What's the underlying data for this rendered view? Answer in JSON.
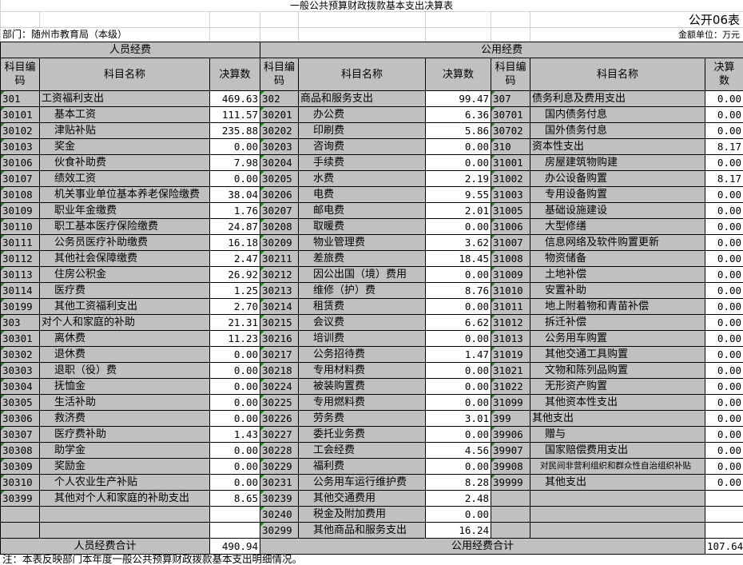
{
  "title": "一般公共预算财政拨款基本支出决算表",
  "form_no": "公开06表",
  "department": "部门：随州市教育局（本级）",
  "unit": "金额单位：万元",
  "sections": {
    "personnel": "人员经费",
    "public": "公用经费"
  },
  "headers": {
    "code": "科目编码",
    "name": "科目名称",
    "amount": "决算数"
  },
  "colors": {
    "cell_gray": "#c0c0c0",
    "value_white": "#ffffff",
    "marker_green": "#1a8a1a"
  },
  "personnel_rows": [
    {
      "code": "301",
      "name": "工资福利支出",
      "amount": "469.63"
    },
    {
      "code": "30101",
      "name": "基本工资",
      "amount": "111.57"
    },
    {
      "code": "30102",
      "name": "津贴补贴",
      "amount": "235.88"
    },
    {
      "code": "30103",
      "name": "奖金",
      "amount": "0.00"
    },
    {
      "code": "30106",
      "name": "伙食补助费",
      "amount": "7.98"
    },
    {
      "code": "30107",
      "name": "绩效工资",
      "amount": "0.00"
    },
    {
      "code": "30108",
      "name": "机关事业单位基本养老保险缴费",
      "amount": "38.04"
    },
    {
      "code": "30109",
      "name": "职业年金缴费",
      "amount": "1.76"
    },
    {
      "code": "30110",
      "name": "职工基本医疗保险缴费",
      "amount": "24.87"
    },
    {
      "code": "30111",
      "name": "公务员医疗补助缴费",
      "amount": "16.18"
    },
    {
      "code": "30112",
      "name": "其他社会保障缴费",
      "amount": "2.47"
    },
    {
      "code": "30113",
      "name": "住房公积金",
      "amount": "26.92"
    },
    {
      "code": "30114",
      "name": "医疗费",
      "amount": "1.25"
    },
    {
      "code": "30199",
      "name": "其他工资福利支出",
      "amount": "2.70"
    },
    {
      "code": "303",
      "name": "对个人和家庭的补助",
      "amount": "21.31"
    },
    {
      "code": "30301",
      "name": "离休费",
      "amount": "11.23"
    },
    {
      "code": "30302",
      "name": "退休费",
      "amount": "0.00"
    },
    {
      "code": "30303",
      "name": "退职（役）费",
      "amount": "0.00"
    },
    {
      "code": "30304",
      "name": "抚恤金",
      "amount": "0.00"
    },
    {
      "code": "30305",
      "name": "生活补助",
      "amount": "0.00"
    },
    {
      "code": "30306",
      "name": "救济费",
      "amount": "0.00"
    },
    {
      "code": "30307",
      "name": "医疗费补助",
      "amount": "1.43"
    },
    {
      "code": "30308",
      "name": "助学金",
      "amount": "0.00"
    },
    {
      "code": "30309",
      "name": "奖励金",
      "amount": "0.00"
    },
    {
      "code": "30310",
      "name": "个人农业生产补贴",
      "amount": "0.00"
    },
    {
      "code": "30399",
      "name": "其他对个人和家庭的补助支出",
      "amount": "8.65"
    }
  ],
  "public_rows_a": [
    {
      "code": "302",
      "name": "商品和服务支出",
      "amount": "99.47"
    },
    {
      "code": "30201",
      "name": "办公费",
      "amount": "6.36"
    },
    {
      "code": "30202",
      "name": "印刷费",
      "amount": "5.86"
    },
    {
      "code": "30203",
      "name": "咨询费",
      "amount": "0.00"
    },
    {
      "code": "30204",
      "name": "手续费",
      "amount": "0.00"
    },
    {
      "code": "30205",
      "name": "水费",
      "amount": "2.19"
    },
    {
      "code": "30206",
      "name": "电费",
      "amount": "9.55"
    },
    {
      "code": "30207",
      "name": "邮电费",
      "amount": "2.01"
    },
    {
      "code": "30208",
      "name": "取暖费",
      "amount": "0.00"
    },
    {
      "code": "30209",
      "name": "物业管理费",
      "amount": "3.62"
    },
    {
      "code": "30211",
      "name": "差旅费",
      "amount": "18.45"
    },
    {
      "code": "30212",
      "name": "因公出国（境）费用",
      "amount": "0.00"
    },
    {
      "code": "30213",
      "name": "维修（护）费",
      "amount": "8.76"
    },
    {
      "code": "30214",
      "name": "租赁费",
      "amount": "0.00"
    },
    {
      "code": "30215",
      "name": "会议费",
      "amount": "6.62"
    },
    {
      "code": "30216",
      "name": "培训费",
      "amount": "0.00"
    },
    {
      "code": "30217",
      "name": "公务招待费",
      "amount": "1.47"
    },
    {
      "code": "30218",
      "name": "专用材料费",
      "amount": "0.00"
    },
    {
      "code": "30224",
      "name": "被装购置费",
      "amount": "0.00"
    },
    {
      "code": "30225",
      "name": "专用燃料费",
      "amount": "0.00"
    },
    {
      "code": "30226",
      "name": "劳务费",
      "amount": "3.01"
    },
    {
      "code": "30227",
      "name": "委托业务费",
      "amount": "0.00"
    },
    {
      "code": "30228",
      "name": "工会经费",
      "amount": "4.56"
    },
    {
      "code": "30229",
      "name": "福利费",
      "amount": "0.00"
    },
    {
      "code": "30231",
      "name": "公务用车运行维护费",
      "amount": "8.28"
    },
    {
      "code": "30239",
      "name": "其他交通费用",
      "amount": "2.48"
    },
    {
      "code": "30240",
      "name": "税金及附加费用",
      "amount": "0.00"
    },
    {
      "code": "30299",
      "name": "其他商品和服务支出",
      "amount": "16.24"
    }
  ],
  "public_rows_b": [
    {
      "code": "307",
      "name": "债务利息及费用支出",
      "amount": "0.00"
    },
    {
      "code": "30701",
      "name": "国内债务付息",
      "amount": "0.00"
    },
    {
      "code": "30702",
      "name": "国外债务付息",
      "amount": "0.00"
    },
    {
      "code": "310",
      "name": "资本性支出",
      "amount": "8.17"
    },
    {
      "code": "31001",
      "name": "房屋建筑物购建",
      "amount": "0.00"
    },
    {
      "code": "31002",
      "name": "办公设备购置",
      "amount": "8.17"
    },
    {
      "code": "31003",
      "name": "专用设备购置",
      "amount": "0.00"
    },
    {
      "code": "31005",
      "name": "基础设施建设",
      "amount": "0.00"
    },
    {
      "code": "31006",
      "name": "大型修缮",
      "amount": "0.00"
    },
    {
      "code": "31007",
      "name": "信息网络及软件购置更新",
      "amount": "0.00"
    },
    {
      "code": "31008",
      "name": "物资储备",
      "amount": "0.00"
    },
    {
      "code": "31009",
      "name": "土地补偿",
      "amount": "0.00"
    },
    {
      "code": "31010",
      "name": "安置补助",
      "amount": "0.00"
    },
    {
      "code": "31011",
      "name": "地上附着物和青苗补偿",
      "amount": "0.00"
    },
    {
      "code": "31012",
      "name": "拆迁补偿",
      "amount": "0.00"
    },
    {
      "code": "31013",
      "name": "公务用车购置",
      "amount": "0.00"
    },
    {
      "code": "31019",
      "name": "其他交通工具购置",
      "amount": "0.00"
    },
    {
      "code": "31021",
      "name": "文物和陈列品购置",
      "amount": "0.00"
    },
    {
      "code": "31022",
      "name": "无形资产购置",
      "amount": "0.00"
    },
    {
      "code": "31099",
      "name": "其他资本性支出",
      "amount": "0.00"
    },
    {
      "code": "399",
      "name": "其他支出",
      "amount": "0.00"
    },
    {
      "code": "39906",
      "name": "赠与",
      "amount": "0.00"
    },
    {
      "code": "39907",
      "name": "国家赔偿费用支出",
      "amount": "0.00"
    },
    {
      "code": "39908",
      "name": "对民间非营利组织和群众性自治组织补贴",
      "amount": "0.00"
    },
    {
      "code": "39999",
      "name": "其他支出",
      "amount": "0.00"
    }
  ],
  "totals": {
    "personnel_label": "人员经费合计",
    "personnel_amount": "490.94",
    "public_label": "公用经费合计",
    "public_amount": "107.64"
  },
  "note": "注：本表反映部门本年度一般公共预算财政拨款基本支出明细情况。"
}
